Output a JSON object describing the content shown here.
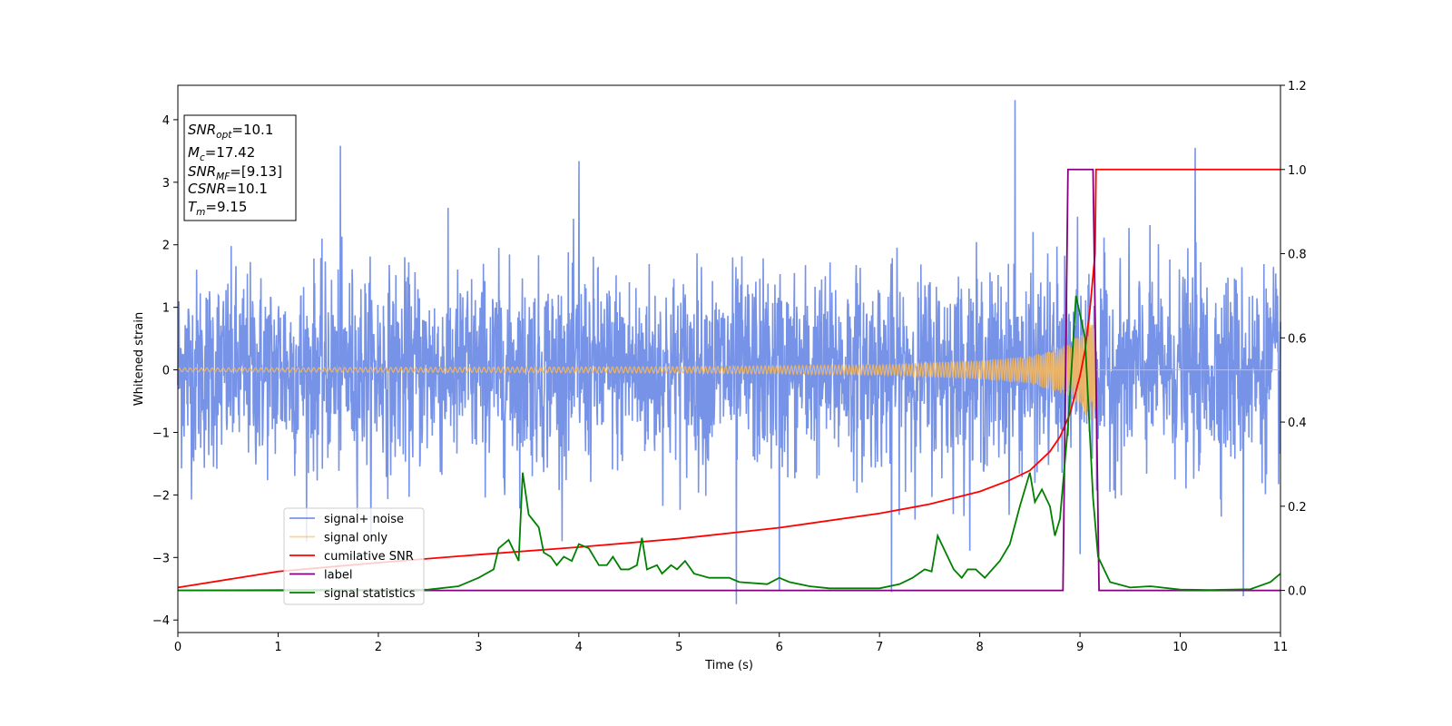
{
  "chart_data": {
    "type": "line",
    "xlabel": "Time (s)",
    "ylabel": "Whitened strain",
    "xlim": [
      0,
      11
    ],
    "ylim_left": [
      -4.2,
      4.55
    ],
    "ylim_right": [
      -0.1,
      1.2
    ],
    "xticks": [
      0,
      1,
      2,
      3,
      4,
      5,
      6,
      7,
      8,
      9,
      10,
      11
    ],
    "yticks_left": [
      -4,
      -3,
      -2,
      -1,
      0,
      1,
      2,
      3,
      4
    ],
    "yticks_right": [
      "0.0",
      "0.2",
      "0.4",
      "0.6",
      "0.8",
      "1.0",
      "1.2"
    ],
    "legend_position": "lower-left",
    "info_box": [
      {
        "base": "SNR",
        "sub": "opt",
        "rest": "=10.1"
      },
      {
        "base": "M",
        "sub": "c",
        "rest": "=17.42"
      },
      {
        "base": "SNR",
        "sub": "MF",
        "rest": "=[9.13]"
      },
      {
        "base": "CSNR",
        "sub": "",
        "rest": "=10.1"
      },
      {
        "base": "T",
        "sub": "m",
        "rest": "=9.15"
      }
    ],
    "series": [
      {
        "name": "signal+ noise",
        "axis": "left",
        "color": "#6b8ae6",
        "description": "white-noise strain, amplitude envelope approx ±2.2 with spikes",
        "spikes": [
          [
            1.62,
            3.62
          ],
          [
            4.0,
            3.32
          ],
          [
            8.35,
            4.18
          ],
          [
            10.15,
            3.55
          ],
          [
            5.57,
            -3.8
          ],
          [
            6.0,
            -3.58
          ],
          [
            7.12,
            -3.6
          ],
          [
            10.63,
            -3.62
          ],
          [
            9.0,
            -3.25
          ]
        ]
      },
      {
        "name": "signal only",
        "axis": "left",
        "color": "#f5b85c",
        "description": "chirp, amplitude growing toward merger near t = 9.15 s, zero afterwards",
        "envelope": [
          [
            0,
            0.03
          ],
          [
            5,
            0.05
          ],
          [
            7,
            0.08
          ],
          [
            8,
            0.15
          ],
          [
            8.5,
            0.22
          ],
          [
            8.9,
            0.42
          ],
          [
            9.1,
            0.8
          ],
          [
            9.15,
            0.8
          ]
        ]
      },
      {
        "name": "cumilative SNR",
        "axis": "right",
        "color": "#ff0000",
        "points": [
          [
            0,
            0.007
          ],
          [
            1,
            0.045
          ],
          [
            2,
            0.066
          ],
          [
            3,
            0.085
          ],
          [
            4,
            0.103
          ],
          [
            5,
            0.123
          ],
          [
            6,
            0.149
          ],
          [
            7,
            0.183
          ],
          [
            7.5,
            0.205
          ],
          [
            8,
            0.235
          ],
          [
            8.3,
            0.262
          ],
          [
            8.5,
            0.285
          ],
          [
            8.7,
            0.33
          ],
          [
            8.8,
            0.365
          ],
          [
            8.9,
            0.42
          ],
          [
            9.0,
            0.51
          ],
          [
            9.05,
            0.57
          ],
          [
            9.1,
            0.67
          ],
          [
            9.15,
            0.8
          ],
          [
            9.16,
            1.0
          ],
          [
            11,
            1.0
          ]
        ]
      },
      {
        "name": "label",
        "axis": "right",
        "color": "#800080",
        "points": [
          [
            0,
            0
          ],
          [
            8.83,
            0
          ],
          [
            8.88,
            1.0
          ],
          [
            9.13,
            1.0
          ],
          [
            9.19,
            0
          ],
          [
            11,
            0
          ]
        ]
      },
      {
        "name": "signal statistics",
        "axis": "right",
        "color": "#008000",
        "points": [
          [
            0,
            0.0
          ],
          [
            2.5,
            0.002
          ],
          [
            2.8,
            0.01
          ],
          [
            3.0,
            0.03
          ],
          [
            3.15,
            0.05
          ],
          [
            3.2,
            0.1
          ],
          [
            3.3,
            0.12
          ],
          [
            3.4,
            0.07
          ],
          [
            3.44,
            0.28
          ],
          [
            3.5,
            0.18
          ],
          [
            3.6,
            0.15
          ],
          [
            3.65,
            0.09
          ],
          [
            3.72,
            0.08
          ],
          [
            3.78,
            0.06
          ],
          [
            3.85,
            0.08
          ],
          [
            3.93,
            0.07
          ],
          [
            4.0,
            0.11
          ],
          [
            4.1,
            0.1
          ],
          [
            4.2,
            0.06
          ],
          [
            4.28,
            0.06
          ],
          [
            4.34,
            0.08
          ],
          [
            4.42,
            0.05
          ],
          [
            4.5,
            0.05
          ],
          [
            4.58,
            0.06
          ],
          [
            4.63,
            0.125
          ],
          [
            4.68,
            0.05
          ],
          [
            4.78,
            0.06
          ],
          [
            4.83,
            0.04
          ],
          [
            4.92,
            0.06
          ],
          [
            4.98,
            0.05
          ],
          [
            5.06,
            0.07
          ],
          [
            5.15,
            0.04
          ],
          [
            5.3,
            0.03
          ],
          [
            5.5,
            0.03
          ],
          [
            5.6,
            0.02
          ],
          [
            5.88,
            0.015
          ],
          [
            6.0,
            0.03
          ],
          [
            6.1,
            0.02
          ],
          [
            6.3,
            0.01
          ],
          [
            6.5,
            0.005
          ],
          [
            6.7,
            0.005
          ],
          [
            7.0,
            0.005
          ],
          [
            7.2,
            0.015
          ],
          [
            7.33,
            0.03
          ],
          [
            7.45,
            0.05
          ],
          [
            7.52,
            0.045
          ],
          [
            7.58,
            0.13
          ],
          [
            7.66,
            0.09
          ],
          [
            7.74,
            0.05
          ],
          [
            7.82,
            0.03
          ],
          [
            7.88,
            0.05
          ],
          [
            7.96,
            0.05
          ],
          [
            8.05,
            0.03
          ],
          [
            8.2,
            0.07
          ],
          [
            8.3,
            0.11
          ],
          [
            8.4,
            0.2
          ],
          [
            8.5,
            0.28
          ],
          [
            8.55,
            0.21
          ],
          [
            8.62,
            0.24
          ],
          [
            8.7,
            0.2
          ],
          [
            8.75,
            0.13
          ],
          [
            8.8,
            0.17
          ],
          [
            8.88,
            0.39
          ],
          [
            8.96,
            0.7
          ],
          [
            9.05,
            0.6
          ],
          [
            9.13,
            0.22
          ],
          [
            9.18,
            0.08
          ],
          [
            9.3,
            0.02
          ],
          [
            9.5,
            0.007
          ],
          [
            9.7,
            0.01
          ],
          [
            10.0,
            0.002
          ],
          [
            10.3,
            0.001
          ],
          [
            10.7,
            0.003
          ],
          [
            10.9,
            0.02
          ],
          [
            11.0,
            0.04
          ]
        ]
      }
    ]
  }
}
